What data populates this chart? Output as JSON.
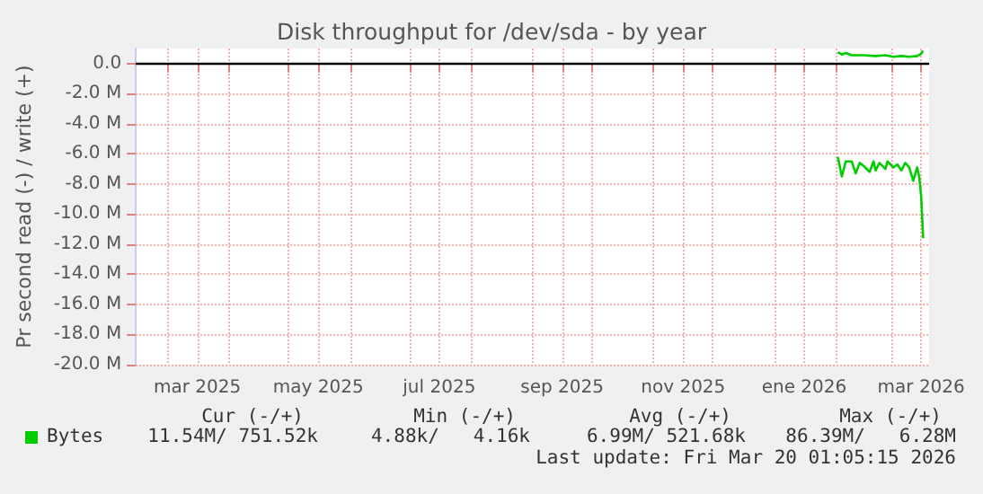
{
  "chart_data": {
    "type": "line",
    "title": "Disk throughput for /dev/sda - by year",
    "ylabel": "Pr second read (-) / write (+)",
    "xlim": [
      "2025-02-13",
      "2026-03-20"
    ],
    "xticks": [
      {
        "value": "2025-03-01",
        "label": null
      },
      {
        "value": "2025-03-16",
        "label": "mar 2025"
      },
      {
        "value": "2025-04-01",
        "label": null
      },
      {
        "value": "2025-05-01",
        "label": null
      },
      {
        "value": "2025-05-16",
        "label": "may 2025"
      },
      {
        "value": "2025-06-01",
        "label": null
      },
      {
        "value": "2025-07-01",
        "label": null
      },
      {
        "value": "2025-07-16",
        "label": "jul 2025"
      },
      {
        "value": "2025-08-01",
        "label": null
      },
      {
        "value": "2025-09-01",
        "label": null
      },
      {
        "value": "2025-09-16",
        "label": "sep 2025"
      },
      {
        "value": "2025-10-01",
        "label": null
      },
      {
        "value": "2025-11-01",
        "label": null
      },
      {
        "value": "2025-11-16",
        "label": "nov 2025"
      },
      {
        "value": "2025-12-01",
        "label": null
      },
      {
        "value": "2026-01-01",
        "label": null
      },
      {
        "value": "2026-01-16",
        "label": "ene 2026"
      },
      {
        "value": "2026-02-01",
        "label": null
      },
      {
        "value": "2026-03-01",
        "label": null
      },
      {
        "value": "2026-03-16",
        "label": "mar 2026"
      }
    ],
    "ylim": [
      -20,
      1
    ],
    "yticks": [
      {
        "value": -20,
        "label": "-20.0 M"
      },
      {
        "value": -18,
        "label": "-18.0 M"
      },
      {
        "value": -16,
        "label": "-16.0 M"
      },
      {
        "value": -14,
        "label": "-14.0 M"
      },
      {
        "value": -12,
        "label": "-12.0 M"
      },
      {
        "value": -10,
        "label": "-10.0 M"
      },
      {
        "value": -8,
        "label": "-8.0 M"
      },
      {
        "value": -6,
        "label": "-6.0 M"
      },
      {
        "value": -4,
        "label": "-4.0 M"
      },
      {
        "value": -2,
        "label": "-2.0 M"
      },
      {
        "value": 0,
        "label": "0.0"
      }
    ],
    "grid": true,
    "legend": "bottom",
    "marker": "none",
    "line_style": "solid",
    "ref_lines": [
      {
        "axis": "y",
        "value": 0,
        "label": null,
        "color": "#000000"
      }
    ],
    "series": [
      {
        "name": "Bytes",
        "color": "#00cc00",
        "x": [
          "2026-02-02",
          "2026-02-04",
          "2026-02-06",
          "2026-02-09",
          "2026-02-11",
          "2026-02-13",
          "2026-02-15",
          "2026-02-18",
          "2026-02-20",
          "2026-02-21",
          "2026-02-23",
          "2026-02-26",
          "2026-02-27",
          "2026-03-02",
          "2026-03-04",
          "2026-03-06",
          "2026-03-08",
          "2026-03-10",
          "2026-03-12",
          "2026-03-14",
          "2026-03-15",
          "2026-03-16",
          "2026-03-17"
        ],
        "values": [
          -6.2,
          -7.5,
          -6.5,
          -6.5,
          -7.3,
          -6.6,
          -6.8,
          -7.2,
          -6.5,
          -7.1,
          -6.6,
          -7.0,
          -6.5,
          -6.9,
          -6.7,
          -7.1,
          -6.6,
          -6.9,
          -7.8,
          -6.9,
          -7.5,
          -8.8,
          -11.6
        ]
      },
      {
        "color": "#00cc00",
        "x": [
          "2026-02-02",
          "2026-02-04",
          "2026-02-06",
          "2026-02-09",
          "2026-02-15",
          "2026-02-21",
          "2026-02-26",
          "2026-03-02",
          "2026-03-06",
          "2026-03-10",
          "2026-03-14",
          "2026-03-16",
          "2026-03-17"
        ],
        "values": [
          0.75,
          0.6,
          0.7,
          0.55,
          0.55,
          0.5,
          0.55,
          0.45,
          0.5,
          0.45,
          0.5,
          0.65,
          0.85
        ]
      }
    ],
    "annotations": [
      "Cur (-/+)",
      "Min (-/+)",
      "Avg (-/+)",
      "Max (-/+)",
      "11.54M/ 751.52k",
      "4.88k/   4.16k",
      "6.99M/ 521.68k",
      "86.39M/   6.28M",
      "Last update: Fri Mar 20 01:05:15 2026"
    ]
  }
}
